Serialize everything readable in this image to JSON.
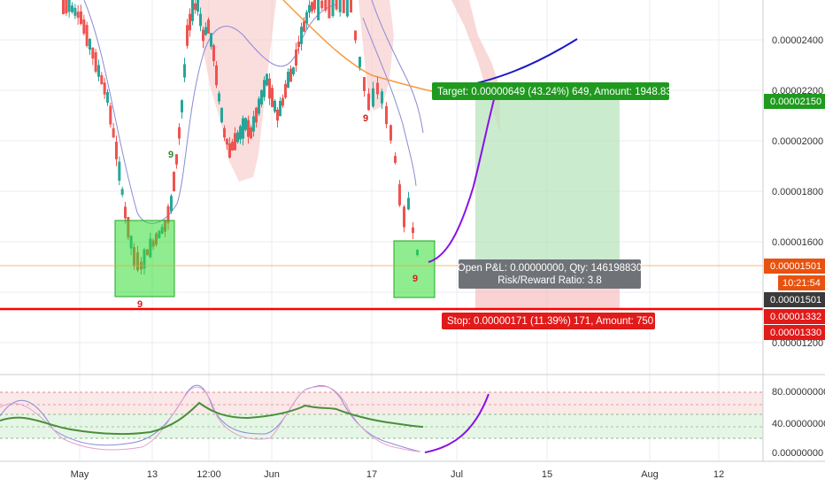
{
  "chart_data": {
    "type": "candlestick",
    "price_axis": {
      "ticks": [
        "0.00002400",
        "0.00002200",
        "0.00002000",
        "0.00001800",
        "0.00001600",
        "0.00001200"
      ],
      "ylim": [
        1.15e-05,
        2.52e-05
      ]
    },
    "time_axis": {
      "ticks": [
        "May",
        "13",
        "12:00",
        "Jun",
        "17",
        "Jul",
        "15",
        "Aug",
        "12"
      ]
    },
    "price_badges": {
      "target": "0.00002150",
      "current": "0.00001501",
      "countdown": "10:21:54",
      "last": "0.00001501",
      "stop_a": "0.00001332",
      "stop_b": "0.00001330"
    },
    "annotations": {
      "target": "Target: 0.00000649 (43.24%) 649, Amount: 1948.83",
      "open_pnl": "Open P&L: 0.00000000, Qty: 146198830",
      "risk_reward": "Risk/Reward Ratio: 3.8",
      "stop": "Stop: 0.00000171 (11.39%) 171, Amount: 750"
    },
    "td_counts": {
      "green_top": "9",
      "red_left": "9",
      "red_mid": "9",
      "red_right": "9"
    },
    "oscillator": {
      "ticks": [
        "80.00000000",
        "40.00000000",
        "0.00000000"
      ],
      "ylim": [
        0,
        100
      ],
      "upper_band": 80,
      "lower_band": 20,
      "mid_upper": 50
    },
    "colors": {
      "up": "#26a69a",
      "down": "#ef5350",
      "target_box": "#2e9d2e",
      "stop_box": "#e11a1a",
      "stop_line": "#ff0000",
      "projection_blue": "#1a18c8",
      "projection_purple": "#8a10e8",
      "ma_orange": "#f59b3f",
      "rsi_green": "#4a8f3a"
    }
  }
}
